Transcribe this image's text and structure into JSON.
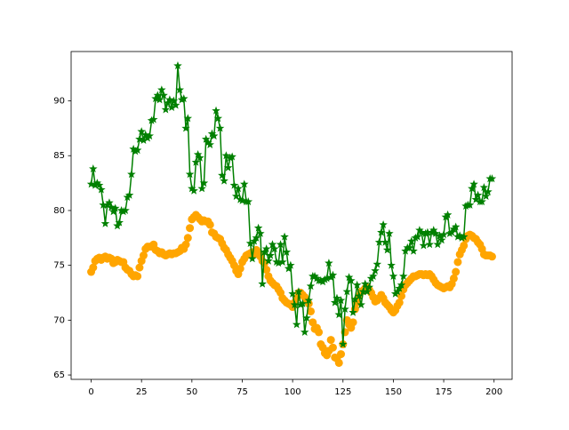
{
  "chart_data": {
    "type": "line",
    "x": [
      0,
      1,
      2,
      3,
      4,
      5,
      6,
      7,
      8,
      9,
      10,
      11,
      12,
      13,
      14,
      15,
      16,
      17,
      18,
      19,
      20,
      21,
      22,
      23,
      24,
      25,
      26,
      27,
      28,
      29,
      30,
      31,
      32,
      33,
      34,
      35,
      36,
      37,
      38,
      39,
      40,
      41,
      42,
      43,
      44,
      45,
      46,
      47,
      48,
      49,
      50,
      51,
      52,
      53,
      54,
      55,
      56,
      57,
      58,
      59,
      60,
      61,
      62,
      63,
      64,
      65,
      66,
      67,
      68,
      69,
      70,
      71,
      72,
      73,
      74,
      75,
      76,
      77,
      78,
      79,
      80,
      81,
      82,
      83,
      84,
      85,
      86,
      87,
      88,
      89,
      90,
      91,
      92,
      93,
      94,
      95,
      96,
      97,
      98,
      99,
      100,
      101,
      102,
      103,
      104,
      105,
      106,
      107,
      108,
      109,
      110,
      111,
      112,
      113,
      114,
      115,
      116,
      117,
      118,
      119,
      120,
      121,
      122,
      123,
      124,
      125,
      126,
      127,
      128,
      129,
      130,
      131,
      132,
      133,
      134,
      135,
      136,
      137,
      138,
      139,
      140,
      141,
      142,
      143,
      144,
      145,
      146,
      147,
      148,
      149,
      150,
      151,
      152,
      153,
      154,
      155,
      156,
      157,
      158,
      159,
      160,
      161,
      162,
      163,
      164,
      165,
      166,
      167,
      168,
      169,
      170,
      171,
      172,
      173,
      174,
      175,
      176,
      177,
      178,
      179,
      180,
      181,
      182,
      183,
      184,
      185,
      186,
      187,
      188,
      189,
      190,
      191,
      192,
      193,
      194,
      195,
      196,
      197,
      198,
      199
    ],
    "series": [
      {
        "color": "#ffa500",
        "marker": "circle",
        "line": false,
        "values": [
          74.4,
          74.8,
          75.4,
          75.6,
          75.7,
          75.5,
          75.7,
          75.8,
          75.6,
          75.7,
          75.6,
          75.2,
          75.3,
          75.5,
          75.4,
          75.3,
          75.3,
          74.8,
          74.6,
          74.5,
          74.2,
          74.0,
          74.1,
          74.0,
          74.8,
          75.4,
          75.9,
          76.5,
          76.7,
          76.7,
          76.7,
          76.9,
          76.4,
          76.3,
          76.1,
          76.2,
          76.0,
          75.9,
          76.0,
          76.1,
          76.0,
          76.1,
          76.1,
          76.2,
          76.3,
          76.6,
          76.5,
          76.9,
          77.5,
          78.4,
          79.2,
          79.4,
          79.6,
          79.4,
          79.2,
          79.0,
          79.1,
          79.0,
          79.0,
          78.7,
          78.0,
          77.9,
          77.6,
          77.5,
          77.4,
          77.0,
          76.6,
          76.4,
          76.0,
          75.7,
          75.4,
          75.0,
          74.5,
          74.2,
          74.7,
          75.3,
          75.6,
          75.9,
          76.0,
          76.1,
          76.2,
          76.0,
          76.4,
          76.2,
          75.8,
          75.4,
          75.2,
          74.6,
          74.0,
          73.6,
          73.4,
          73.2,
          73.1,
          72.8,
          72.5,
          72.0,
          71.8,
          71.6,
          71.5,
          71.4,
          71.2,
          71.6,
          72.0,
          72.5,
          72.5,
          72.3,
          72.1,
          71.8,
          71.5,
          70.8,
          69.8,
          69.2,
          69.3,
          68.9,
          67.8,
          67.5,
          67.0,
          66.8,
          67.2,
          68.2,
          67.5,
          66.6,
          66.5,
          66.1,
          66.9,
          67.8,
          68.9,
          70.0,
          69.6,
          69.3,
          69.8,
          71.0,
          71.6,
          72.2,
          72.6,
          72.7,
          72.9,
          73.0,
          72.8,
          72.5,
          72.1,
          71.7,
          71.8,
          72.0,
          72.3,
          72.0,
          71.6,
          71.4,
          71.2,
          70.9,
          70.7,
          70.9,
          71.3,
          71.6,
          72.2,
          72.8,
          73.2,
          73.4,
          73.6,
          73.8,
          74.0,
          74.0,
          74.1,
          74.2,
          74.2,
          74.1,
          74.2,
          74.1,
          74.2,
          74.0,
          73.7,
          73.4,
          73.2,
          73.1,
          73.0,
          72.9,
          73.0,
          73.1,
          73.0,
          73.3,
          73.8,
          74.4,
          75.3,
          76.0,
          76.4,
          76.8,
          77.4,
          77.7,
          77.8,
          77.7,
          77.5,
          77.4,
          77.1,
          76.9,
          76.5,
          76.0,
          75.9,
          75.9,
          75.9,
          75.8
        ]
      },
      {
        "color": "#008000",
        "marker": "star",
        "line": true,
        "values": [
          82.4,
          83.8,
          82.3,
          82.5,
          82.3,
          81.9,
          80.5,
          78.8,
          80.5,
          80.7,
          80.3,
          79.9,
          80.2,
          78.6,
          78.9,
          80.0,
          79.9,
          80.0,
          81.2,
          81.4,
          83.3,
          85.6,
          85.4,
          85.5,
          86.5,
          87.2,
          86.4,
          86.9,
          86.6,
          86.8,
          88.2,
          88.3,
          90.2,
          90.5,
          90.1,
          91.0,
          90.5,
          89.2,
          89.8,
          90.1,
          89.4,
          90.0,
          89.6,
          93.2,
          91.0,
          90.1,
          90.2,
          87.5,
          88.4,
          83.3,
          82.0,
          81.8,
          84.4,
          85.1,
          84.8,
          82.0,
          82.5,
          86.5,
          86.2,
          86.0,
          87.0,
          86.8,
          89.1,
          88.4,
          87.5,
          83.2,
          82.7,
          85.0,
          83.9,
          84.8,
          84.9,
          82.3,
          81.3,
          82.0,
          81.0,
          80.9,
          82.4,
          80.8,
          80.8,
          77.0,
          75.6,
          77.2,
          77.5,
          78.4,
          77.9,
          73.3,
          76.2,
          76.5,
          75.4,
          75.9,
          76.9,
          76.5,
          75.3,
          75.2,
          76.9,
          75.3,
          77.6,
          76.2,
          74.7,
          75.0,
          72.4,
          71.4,
          69.6,
          72.6,
          71.4,
          71.5,
          68.9,
          70.2,
          71.8,
          73.1,
          74.0,
          74.0,
          73.8,
          73.6,
          73.6,
          73.5,
          73.7,
          73.8,
          75.2,
          73.9,
          74.1,
          71.6,
          72.0,
          70.5,
          71.8,
          67.8,
          71.0,
          72.6,
          73.9,
          73.6,
          70.7,
          71.9,
          73.2,
          72.2,
          71.4,
          72.6,
          73.3,
          72.6,
          73.0,
          73.8,
          74.0,
          74.5,
          75.1,
          77.1,
          78.0,
          78.7,
          77.1,
          76.4,
          77.9,
          75.0,
          74.0,
          72.4,
          72.6,
          72.9,
          73.2,
          74.0,
          76.3,
          76.6,
          76.6,
          77.2,
          76.3,
          77.5,
          77.6,
          78.2,
          78.0,
          76.8,
          77.9,
          78.0,
          76.9,
          78.0,
          78.2,
          77.9,
          76.9,
          77.7,
          77.3,
          77.8,
          79.4,
          79.6,
          77.9,
          78.0,
          78.3,
          78.5,
          77.6,
          77.7,
          77.5,
          77.6,
          80.4,
          80.5,
          80.5,
          82.0,
          82.4,
          81.0,
          81.4,
          80.8,
          80.8,
          82.1,
          81.3,
          81.7,
          82.9,
          82.9
        ]
      }
    ],
    "xlim": [
      -9.95,
      208.95
    ],
    "ylim": [
      64.6,
      94.5
    ],
    "xticks": [
      0,
      25,
      50,
      75,
      100,
      125,
      150,
      175,
      200
    ],
    "yticks": [
      65,
      70,
      75,
      80,
      85,
      90
    ]
  }
}
